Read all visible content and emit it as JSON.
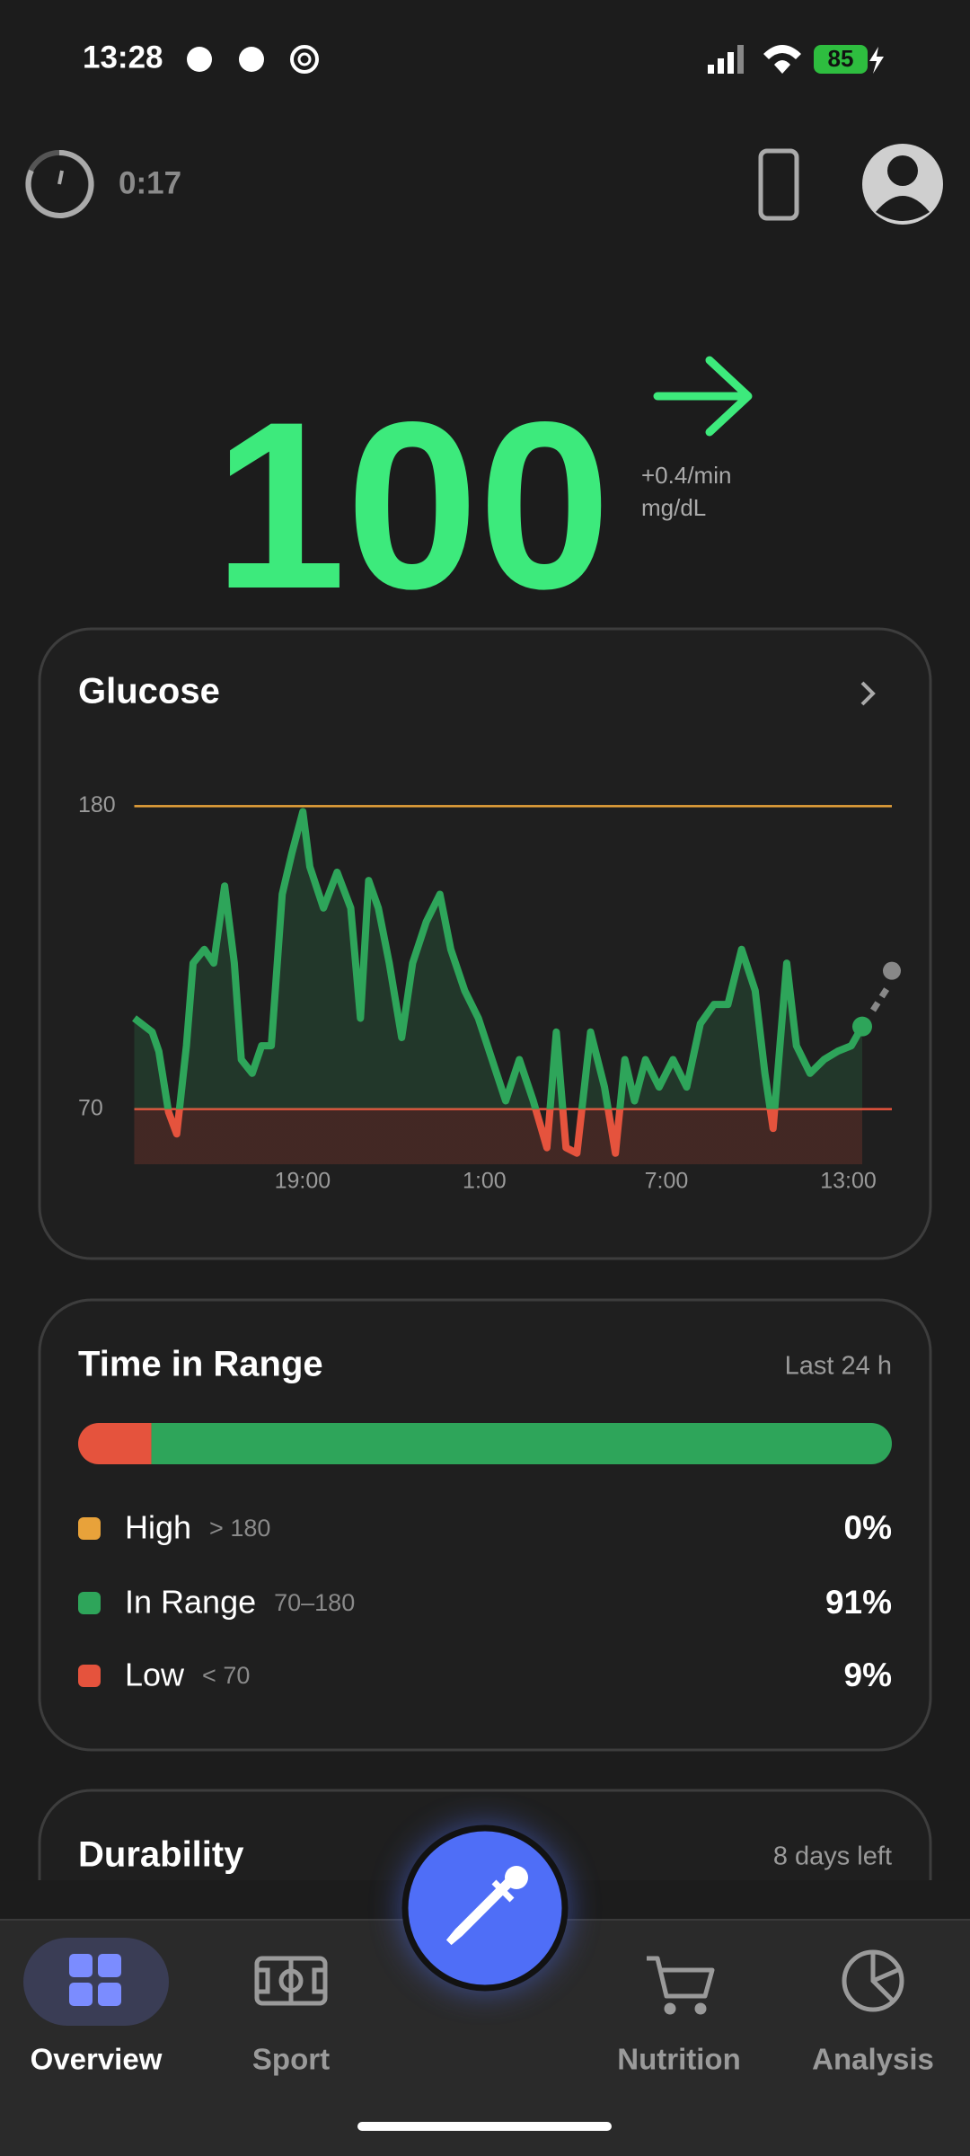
{
  "status_bar": {
    "time": "13:28",
    "battery": "85"
  },
  "header": {
    "timer": "0:17"
  },
  "reading": {
    "value": "100",
    "trend": "+0.4/min",
    "unit": "mg/dL"
  },
  "glucose_card": {
    "title": "Glucose",
    "chart_data": {
      "type": "line",
      "x": [
        13.45,
        14.04,
        14.26,
        14.58,
        14.85,
        15.17,
        15.39,
        15.76,
        16.07,
        16.43,
        16.75,
        16.98,
        17.34,
        17.65,
        17.97,
        18.33,
        18.65,
        19.01,
        19.24,
        19.69,
        20.14,
        20.59,
        20.91,
        21.18,
        21.5,
        21.86,
        22.27,
        22.63,
        23.08,
        23.53,
        23.89,
        24.35,
        24.8,
        25.25,
        25.7,
        26.15,
        26.61,
        27.06,
        27.37,
        27.69,
        28.05,
        28.5,
        28.96,
        29.32,
        29.63,
        29.95,
        30.31,
        30.76,
        31.22,
        31.67,
        32.12,
        32.57,
        33.03,
        33.48,
        33.93,
        34.25,
        34.52,
        34.97,
        35.29,
        35.74,
        36.2,
        36.65,
        37.1,
        37.46
      ],
      "values": [
        103,
        98,
        91,
        69,
        61,
        93,
        123,
        128,
        123,
        151,
        123,
        88,
        83,
        93,
        93,
        148,
        163,
        178,
        158,
        143,
        156,
        143,
        103,
        153,
        143,
        123,
        96,
        123,
        138,
        148,
        128,
        113,
        103,
        88,
        73,
        88,
        73,
        56,
        98,
        56,
        54,
        98,
        78,
        54,
        88,
        73,
        88,
        78,
        88,
        78,
        101,
        108,
        108,
        128,
        113,
        83,
        63,
        123,
        93,
        83,
        88,
        91,
        93,
        100
      ],
      "color": "#2ea55a",
      "low_color": "#e5533d",
      "high_color": "#e8a23a",
      "xlim": [
        13.45,
        37.46
      ],
      "xticks": [
        {
          "value": 19,
          "label": "19:00"
        },
        {
          "value": 25,
          "label": "1:00"
        },
        {
          "value": 31,
          "label": "7:00"
        },
        {
          "value": 37,
          "label": "13:00"
        }
      ],
      "ylim": [
        50,
        185
      ],
      "yticks": [
        70,
        180
      ]
    }
  },
  "time_in_range": {
    "title": "Time in Range",
    "period": "Last 24 h",
    "items": [
      {
        "name": "High",
        "range": "> 180",
        "value": 0,
        "value_label": "0%",
        "color": "#e8a23a"
      },
      {
        "name": "In Range",
        "range": "70–180",
        "value": 91,
        "value_label": "91%",
        "color": "#2ea55a"
      },
      {
        "name": "Low",
        "range": "< 70",
        "value": 9,
        "value_label": "9%",
        "color": "#e5533d"
      }
    ]
  },
  "durability": {
    "title": "Durability",
    "remaining": "8 days left"
  },
  "nav": {
    "items": [
      "Overview",
      "Sport",
      "Nutrition",
      "Analysis"
    ]
  }
}
